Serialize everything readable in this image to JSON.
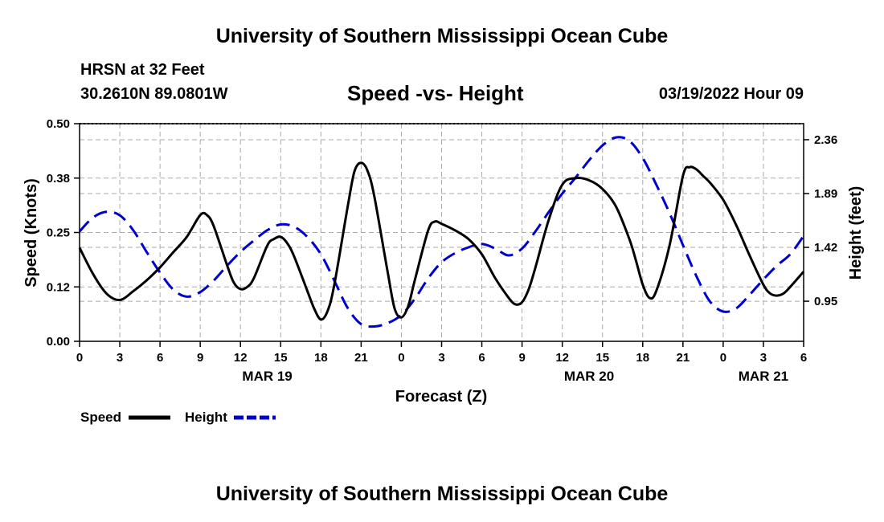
{
  "header": {
    "title": "University of Southern Mississippi Ocean Cube",
    "station": "HRSN at 32 Feet",
    "coords": "30.2610N  89.0801W",
    "subtitle": "Speed -vs- Height",
    "datetime": "03/19/2022 Hour 09"
  },
  "footer": {
    "title": "University of Southern Mississippi Ocean Cube"
  },
  "chart_data": {
    "type": "line",
    "title": "Speed -vs- Height",
    "xlabel": "Forecast (Z)",
    "ylabel": "Speed (Knots)",
    "y2label": "Height (feet)",
    "x_range": [
      0,
      54
    ],
    "ylim": [
      0,
      0.5
    ],
    "y2lim": [
      0.6,
      2.5
    ],
    "yticks": [
      0,
      0.125,
      0.25,
      0.375,
      0.5
    ],
    "ytick_labels": [
      "0.00",
      "0.12",
      "0.25",
      "0.38",
      "0.50"
    ],
    "y2ticks": [
      0.95,
      1.42,
      1.89,
      2.36
    ],
    "y2tick_labels": [
      "0.95",
      "1.42",
      "1.89",
      "2.36"
    ],
    "xticks": [
      0,
      3,
      6,
      9,
      12,
      15,
      18,
      21,
      24,
      27,
      30,
      33,
      36,
      39,
      42,
      45,
      48,
      51,
      54
    ],
    "xtick_labels": [
      "0",
      "3",
      "6",
      "9",
      "12",
      "15",
      "18",
      "21",
      "0",
      "3",
      "6",
      "9",
      "12",
      "15",
      "18",
      "21",
      "0",
      "3",
      "6"
    ],
    "day_labels": [
      {
        "x": 14,
        "label": "MAR 19"
      },
      {
        "x": 38,
        "label": "MAR 20"
      },
      {
        "x": 51,
        "label": "MAR 21"
      }
    ],
    "grid": true,
    "legend": "bottom-left",
    "series": [
      {
        "name": "Speed",
        "axis": "left",
        "color": "#000000",
        "style": "solid",
        "x": [
          0,
          1,
          2,
          3,
          4,
          5,
          6,
          7,
          8,
          9,
          9.5,
          10,
          11,
          11.5,
          12,
          12.5,
          13,
          14,
          14.5,
          15,
          15.5,
          16,
          17,
          17.5,
          18,
          18.5,
          19,
          20,
          20.5,
          21,
          21.5,
          22,
          23,
          23.5,
          24,
          24.5,
          25,
          26,
          26.5,
          27,
          28,
          29,
          30,
          31,
          32,
          32.5,
          33,
          33.5,
          34,
          35,
          36,
          37,
          38,
          39,
          40,
          41,
          41.5,
          42,
          42.5,
          43,
          44,
          45,
          45.5,
          46,
          46.5,
          47,
          48,
          49,
          50,
          51,
          51.5,
          52,
          52.5,
          53,
          54
        ],
        "y": [
          0.215,
          0.155,
          0.11,
          0.095,
          0.115,
          0.14,
          0.17,
          0.205,
          0.24,
          0.29,
          0.29,
          0.265,
          0.175,
          0.135,
          0.12,
          0.125,
          0.145,
          0.22,
          0.235,
          0.24,
          0.225,
          0.195,
          0.115,
          0.075,
          0.05,
          0.07,
          0.13,
          0.31,
          0.39,
          0.41,
          0.39,
          0.33,
          0.155,
          0.075,
          0.055,
          0.08,
          0.14,
          0.255,
          0.275,
          0.27,
          0.255,
          0.235,
          0.2,
          0.145,
          0.1,
          0.085,
          0.09,
          0.12,
          0.17,
          0.28,
          0.36,
          0.375,
          0.37,
          0.35,
          0.31,
          0.235,
          0.185,
          0.13,
          0.1,
          0.115,
          0.22,
          0.38,
          0.4,
          0.395,
          0.38,
          0.365,
          0.325,
          0.265,
          0.195,
          0.13,
          0.11,
          0.105,
          0.11,
          0.125,
          0.16
        ]
      },
      {
        "name": "Height",
        "axis": "right",
        "color": "#0000cc",
        "style": "dashed",
        "x": [
          0,
          1,
          2,
          3,
          4,
          5,
          6,
          7,
          8,
          9,
          10,
          11,
          12,
          13,
          14,
          15,
          16,
          17,
          18,
          19,
          20,
          21,
          22,
          23,
          24,
          25,
          26,
          27,
          28,
          29,
          30,
          31,
          32,
          33,
          34,
          35,
          36,
          37,
          38,
          39,
          40,
          41,
          42,
          43,
          44,
          45,
          46,
          47,
          48,
          49,
          50,
          51,
          52,
          53,
          54
        ],
        "y": [
          1.56,
          1.68,
          1.73,
          1.7,
          1.57,
          1.38,
          1.2,
          1.05,
          0.99,
          1.03,
          1.13,
          1.26,
          1.38,
          1.48,
          1.57,
          1.62,
          1.6,
          1.51,
          1.36,
          1.13,
          0.89,
          0.75,
          0.73,
          0.76,
          0.83,
          0.97,
          1.15,
          1.29,
          1.37,
          1.42,
          1.45,
          1.41,
          1.35,
          1.41,
          1.56,
          1.73,
          1.89,
          2.03,
          2.18,
          2.31,
          2.38,
          2.35,
          2.2,
          1.97,
          1.72,
          1.44,
          1.17,
          0.95,
          0.86,
          0.89,
          1.01,
          1.14,
          1.26,
          1.36,
          1.52
        ]
      }
    ],
    "legend_entries": [
      "Speed",
      "Height"
    ]
  }
}
